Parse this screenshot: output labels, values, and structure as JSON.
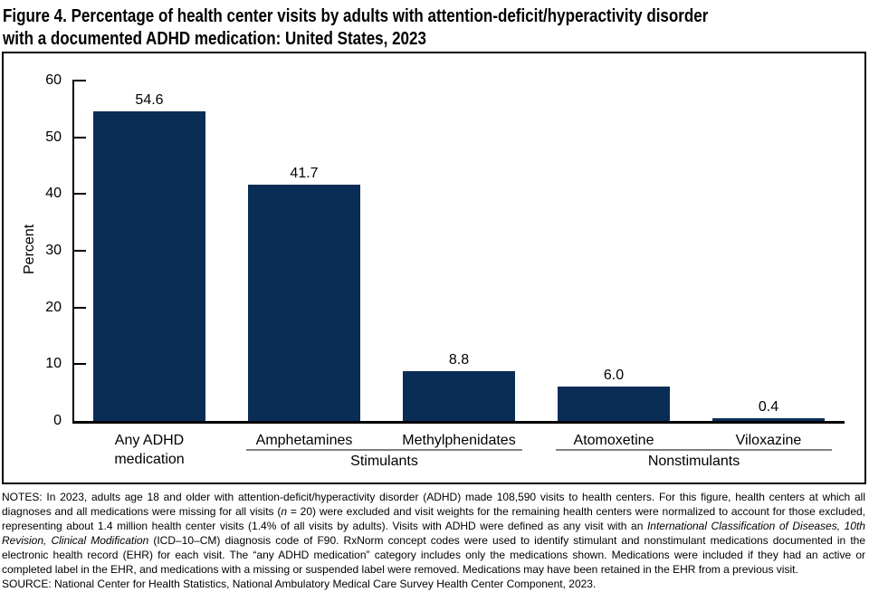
{
  "figure_title": {
    "line1": "Figure 4. Percentage of health center visits by adults with attention-deficit/hyperactivity disorder",
    "line2": "with a documented ADHD medication: United States, 2023"
  },
  "chart_data": {
    "type": "bar",
    "title": "Figure 4. Percentage of health center visits by adults with attention-deficit/hyperactivity disorder with a documented ADHD medication: United States, 2023",
    "xlabel": "",
    "ylabel": "Percent",
    "ylim": [
      0,
      60
    ],
    "yticks": [
      0,
      10,
      20,
      30,
      40,
      50,
      60
    ],
    "grid": false,
    "legend": null,
    "bar_color": "#0a2d56",
    "categories": [
      "Any ADHD medication",
      "Amphetamines",
      "Methylphenidates",
      "Atomoxetine",
      "Viloxazine"
    ],
    "tick_labels": [
      "Any ADHD\nmedication",
      "Amphetamines",
      "Methylphenidates",
      "Atomoxetine",
      "Viloxazine"
    ],
    "values": [
      54.6,
      41.7,
      8.8,
      6.0,
      0.4
    ],
    "value_labels": [
      "54.6",
      "41.7",
      "8.8",
      "6.0",
      "0.4"
    ],
    "groups": [
      {
        "label": "Stimulants",
        "bars": [
          1,
          2
        ]
      },
      {
        "label": "Nonstimulants",
        "bars": [
          3,
          4
        ]
      }
    ]
  },
  "notes": {
    "segments": [
      {
        "text": "NOTES: In 2023, adults age 18 and older with attention-deficit/hyperactivity disorder (ADHD) made 108,590 visits to health centers. For this figure, health centers at which all diagnoses and all medications were missing for all visits (",
        "italic": false
      },
      {
        "text": "n",
        "italic": true
      },
      {
        "text": " = 20) were excluded and visit weights for the remaining health centers were normalized to account for those excluded, representing about 1.4 million health center visits (1.4% of all visits by adults). Visits with ADHD were defined as any visit with an ",
        "italic": false
      },
      {
        "text": "International Classification of Diseases, 10th Revision, Clinical Modification",
        "italic": true
      },
      {
        "text": " (ICD–10–CM) diagnosis code of F90. RxNorm concept codes were used to identify stimulant and nonstimulant medications documented in the electronic health record (EHR) for each visit. The “any ADHD medication” category includes only the medications shown. Medications were included if they had an active or completed label in the EHR, and medications with a missing or suspended label were removed. Medications may have been retained in the EHR from a previous visit.",
        "italic": false
      }
    ]
  },
  "source": "SOURCE: National Center for Health Statistics, National Ambulatory Medical Care Survey Health Center Component, 2023."
}
